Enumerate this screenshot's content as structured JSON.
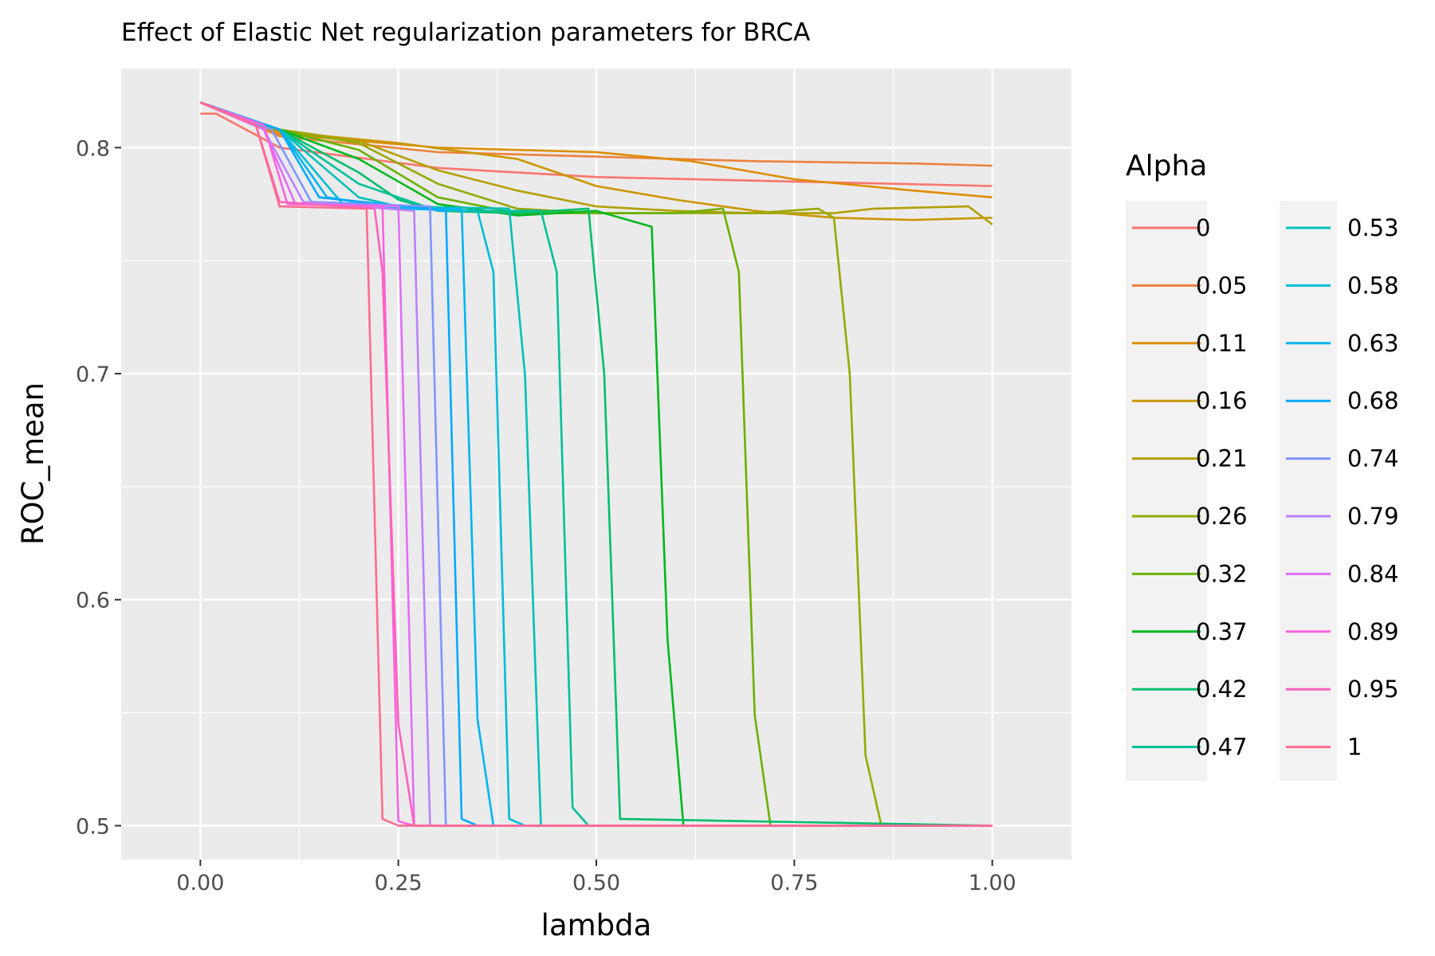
{
  "chart_data": {
    "type": "line",
    "title": "Effect of Elastic Net regularization parameters for BRCA",
    "xlabel": "lambda",
    "ylabel": "ROC_mean",
    "xlim": [
      -0.1,
      1.1
    ],
    "ylim": [
      0.485,
      0.835
    ],
    "x_ticks": [
      0,
      0.25,
      0.5,
      0.75,
      1
    ],
    "x_tick_labels": [
      "0.00",
      "0.25",
      "0.50",
      "0.75",
      "1.00"
    ],
    "y_ticks": [
      0.5,
      0.6,
      0.7,
      0.8
    ],
    "y_tick_labels": [
      "0.5",
      "0.6",
      "0.7",
      "0.8"
    ],
    "grid": true,
    "panel_background": "#EBEBEB",
    "legend": {
      "title": "Alpha",
      "placement": "right",
      "columns": 2
    },
    "series": [
      {
        "name": "0",
        "color": "#F8766D",
        "x": [
          0,
          0.02,
          0.1,
          0.3,
          0.5,
          0.75,
          1.0
        ],
        "y": [
          0.815,
          0.815,
          0.8,
          0.791,
          0.787,
          0.785,
          0.783
        ]
      },
      {
        "name": "0.05",
        "color": "#EC823C",
        "x": [
          0,
          0.1,
          0.3,
          0.5,
          0.7,
          0.9,
          1.0
        ],
        "y": [
          0.82,
          0.805,
          0.798,
          0.796,
          0.794,
          0.793,
          0.792
        ]
      },
      {
        "name": "0.11",
        "color": "#DD8D00",
        "x": [
          0,
          0.1,
          0.3,
          0.5,
          0.62,
          0.75,
          0.9,
          1.0
        ],
        "y": [
          0.82,
          0.806,
          0.8,
          0.798,
          0.794,
          0.786,
          0.781,
          0.778
        ]
      },
      {
        "name": "0.16",
        "color": "#CA9700",
        "x": [
          0,
          0.1,
          0.25,
          0.4,
          0.5,
          0.6,
          0.7,
          0.8,
          0.9,
          1.0
        ],
        "y": [
          0.82,
          0.807,
          0.802,
          0.795,
          0.783,
          0.777,
          0.772,
          0.769,
          0.768,
          0.769
        ]
      },
      {
        "name": "0.21",
        "color": "#B3A000",
        "x": [
          0,
          0.1,
          0.2,
          0.3,
          0.4,
          0.5,
          0.6,
          0.7,
          0.8,
          0.85,
          0.97,
          1.0
        ],
        "y": [
          0.82,
          0.808,
          0.803,
          0.79,
          0.781,
          0.774,
          0.772,
          0.771,
          0.771,
          0.773,
          0.774,
          0.766
        ]
      },
      {
        "name": "0.26",
        "color": "#96A900",
        "x": [
          0,
          0.1,
          0.2,
          0.3,
          0.4,
          0.5,
          0.6,
          0.7,
          0.78,
          0.8,
          0.82,
          0.84,
          0.86,
          1.0
        ],
        "y": [
          0.82,
          0.808,
          0.802,
          0.784,
          0.773,
          0.771,
          0.771,
          0.771,
          0.773,
          0.769,
          0.7,
          0.531,
          0.5,
          0.5
        ]
      },
      {
        "name": "0.32",
        "color": "#6BB100",
        "x": [
          0,
          0.1,
          0.2,
          0.3,
          0.4,
          0.5,
          0.6,
          0.66,
          0.68,
          0.7,
          0.72,
          1.0
        ],
        "y": [
          0.82,
          0.808,
          0.799,
          0.778,
          0.771,
          0.771,
          0.771,
          0.773,
          0.745,
          0.549,
          0.5,
          0.5
        ]
      },
      {
        "name": "0.37",
        "color": "#00B81F",
        "x": [
          0,
          0.1,
          0.2,
          0.3,
          0.4,
          0.5,
          0.57,
          0.59,
          0.61,
          1.0
        ],
        "y": [
          0.82,
          0.808,
          0.795,
          0.775,
          0.77,
          0.772,
          0.765,
          0.582,
          0.5,
          0.5
        ]
      },
      {
        "name": "0.42",
        "color": "#00BE6B",
        "x": [
          0,
          0.1,
          0.2,
          0.25,
          0.3,
          0.4,
          0.49,
          0.51,
          0.53,
          1.0
        ],
        "y": [
          0.82,
          0.808,
          0.789,
          0.777,
          0.772,
          0.771,
          0.773,
          0.7,
          0.503,
          0.5
        ]
      },
      {
        "name": "0.47",
        "color": "#00C097",
        "x": [
          0,
          0.1,
          0.2,
          0.3,
          0.43,
          0.45,
          0.47,
          0.49,
          1.0
        ],
        "y": [
          0.82,
          0.808,
          0.784,
          0.772,
          0.772,
          0.745,
          0.508,
          0.5,
          0.5
        ]
      },
      {
        "name": "0.53",
        "color": "#00C0B8",
        "x": [
          0,
          0.1,
          0.2,
          0.25,
          0.39,
          0.41,
          0.43,
          1.0
        ],
        "y": [
          0.82,
          0.808,
          0.778,
          0.774,
          0.773,
          0.699,
          0.5,
          0.5
        ]
      },
      {
        "name": "0.58",
        "color": "#00BCD6",
        "x": [
          0,
          0.1,
          0.18,
          0.25,
          0.35,
          0.37,
          0.39,
          0.41,
          1.0
        ],
        "y": [
          0.82,
          0.808,
          0.775,
          0.773,
          0.772,
          0.745,
          0.503,
          0.5,
          0.5
        ]
      },
      {
        "name": "0.63",
        "color": "#00B5EE",
        "x": [
          0,
          0.1,
          0.16,
          0.25,
          0.33,
          0.35,
          0.37,
          1.0
        ],
        "y": [
          0.82,
          0.808,
          0.778,
          0.773,
          0.773,
          0.547,
          0.5,
          0.5
        ]
      },
      {
        "name": "0.68",
        "color": "#00A9FF",
        "x": [
          0,
          0.1,
          0.15,
          0.31,
          0.33,
          0.35,
          1.0
        ],
        "y": [
          0.82,
          0.808,
          0.778,
          0.772,
          0.503,
          0.5,
          0.5
        ]
      },
      {
        "name": "0.74",
        "color": "#7F96FF",
        "x": [
          0,
          0.09,
          0.14,
          0.29,
          0.31,
          1.0
        ],
        "y": [
          0.82,
          0.808,
          0.776,
          0.774,
          0.5,
          0.5
        ]
      },
      {
        "name": "0.79",
        "color": "#BC81FF",
        "x": [
          0,
          0.08,
          0.13,
          0.27,
          0.29,
          1.0
        ],
        "y": [
          0.82,
          0.808,
          0.776,
          0.772,
          0.5,
          0.5
        ]
      },
      {
        "name": "0.84",
        "color": "#E26EF7",
        "x": [
          0,
          0.08,
          0.12,
          0.25,
          0.27,
          1.0
        ],
        "y": [
          0.82,
          0.808,
          0.775,
          0.774,
          0.5,
          0.5
        ]
      },
      {
        "name": "0.89",
        "color": "#F863DF",
        "x": [
          0,
          0.08,
          0.11,
          0.23,
          0.25,
          0.27,
          1.0
        ],
        "y": [
          0.82,
          0.81,
          0.775,
          0.774,
          0.502,
          0.5,
          0.5
        ]
      },
      {
        "name": "0.95",
        "color": "#FF62BC",
        "x": [
          0,
          0.07,
          0.1,
          0.22,
          0.23,
          0.25,
          0.27,
          1.0
        ],
        "y": [
          0.82,
          0.81,
          0.776,
          0.773,
          0.745,
          0.545,
          0.5,
          0.5
        ]
      },
      {
        "name": "1",
        "color": "#FF6C91",
        "x": [
          0,
          0.07,
          0.1,
          0.21,
          0.23,
          0.25,
          1.0
        ],
        "y": [
          0.82,
          0.81,
          0.774,
          0.773,
          0.503,
          0.5,
          0.5
        ]
      }
    ]
  }
}
